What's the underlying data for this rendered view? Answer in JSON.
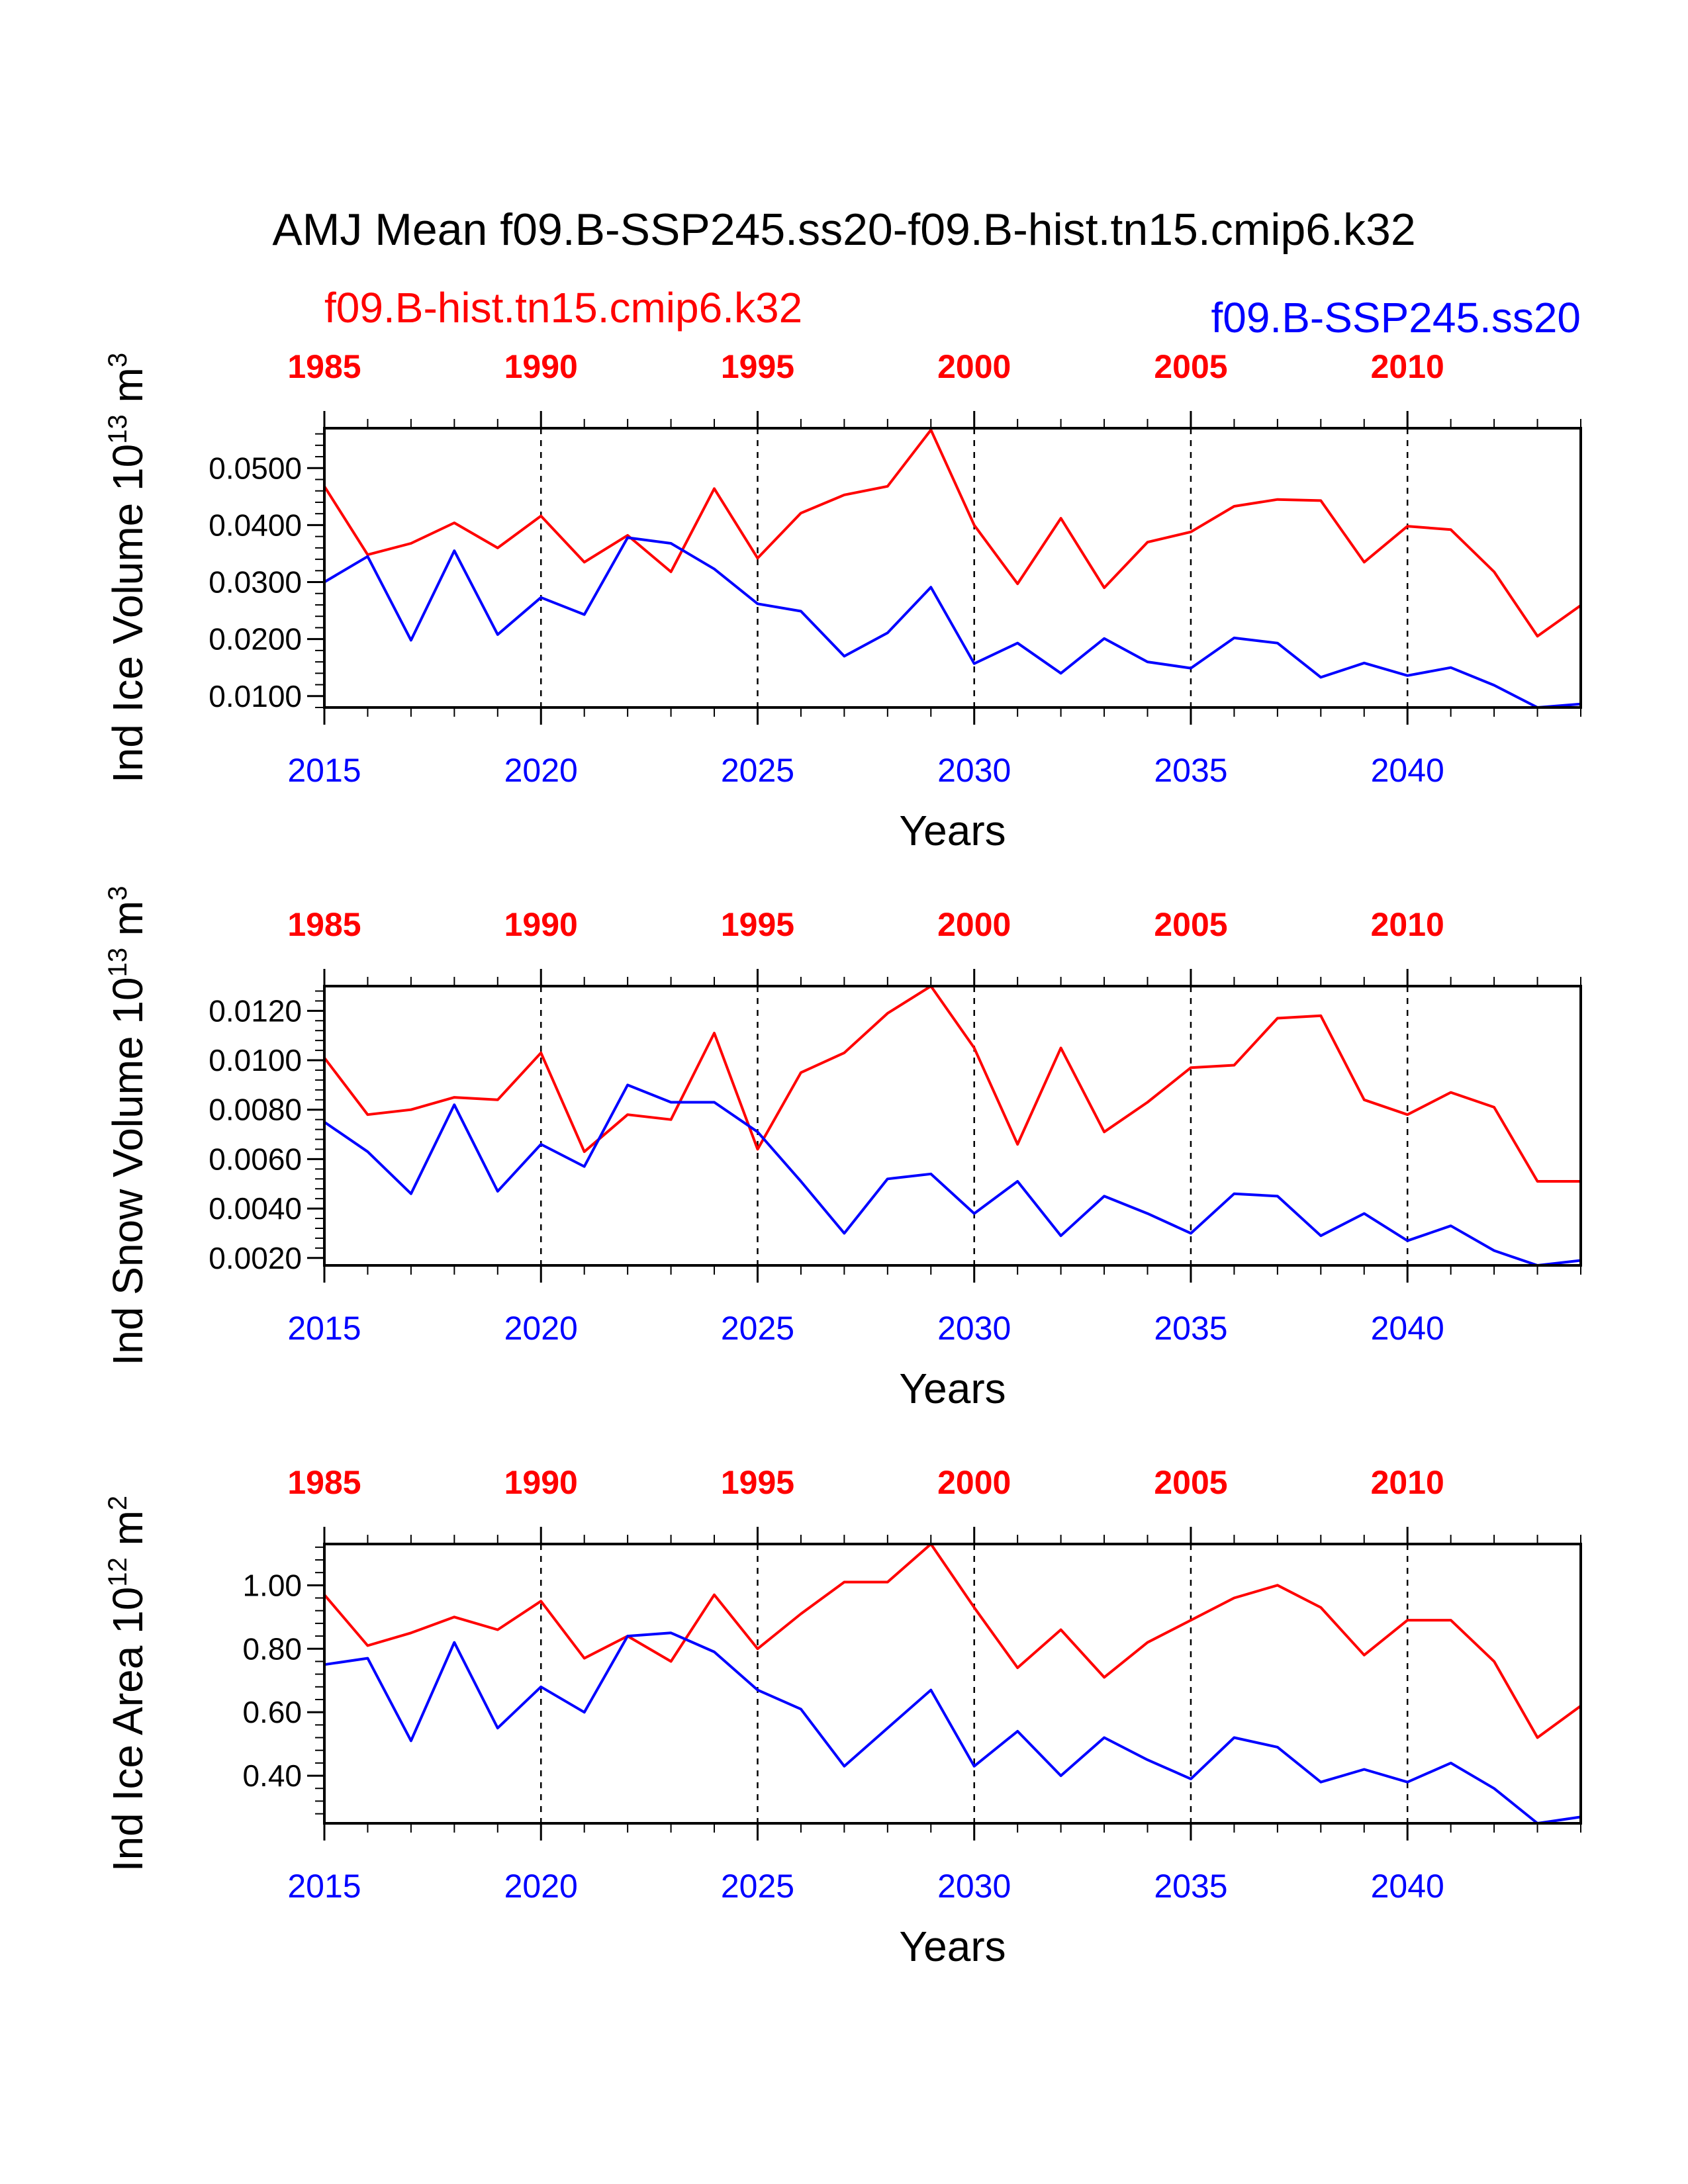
{
  "figure": {
    "title": "AMJ Mean f09.B-SSP245.ss20-f09.B-hist.tn15.cmip6.k32",
    "legend_left": "f09.B-hist.tn15.cmip6.k32",
    "legend_right": "f09.B-SSP245.ss20",
    "colors": {
      "historical": "#ff0000",
      "ssp": "#0000ff",
      "axis": "#000000"
    }
  },
  "chart_data": [
    {
      "type": "line",
      "title": "",
      "xlabel": "Years",
      "ylabel": {
        "main": "Ind Ice Volume 10",
        "sup": "13",
        "unit": " m",
        "unit_sup": "3"
      },
      "x": [
        2015,
        2016,
        2017,
        2018,
        2019,
        2020,
        2021,
        2022,
        2023,
        2024,
        2025,
        2026,
        2027,
        2028,
        2029,
        2030,
        2031,
        2032,
        2033,
        2034,
        2035,
        2036,
        2037,
        2038,
        2039,
        2040,
        2041,
        2042,
        2043,
        2044
      ],
      "xlim": [
        2015,
        2044
      ],
      "bottom_ticks": [
        "2015",
        "2020",
        "2025",
        "2030",
        "2035",
        "2040"
      ],
      "top_ticks": [
        "1985",
        "1990",
        "1995",
        "2000",
        "2005",
        "2010"
      ],
      "ylim": [
        0.008,
        0.057
      ],
      "yticks": [
        0.01,
        0.02,
        0.03,
        0.04,
        0.05
      ],
      "ytick_labels": [
        "0.0100",
        "0.0200",
        "0.0300",
        "0.0400",
        "0.0500"
      ],
      "yminor_step": 0.002,
      "grid": "dashed vertical at major x ticks",
      "series": [
        {
          "role": "historical",
          "color": "#ff0000",
          "values": [
            0.0468,
            0.0348,
            0.0368,
            0.0404,
            0.036,
            0.0416,
            0.0335,
            0.0382,
            0.0318,
            0.0464,
            0.0342,
            0.0421,
            0.0453,
            0.0468,
            0.0567,
            0.04,
            0.0297,
            0.0412,
            0.029,
            0.037,
            0.0388,
            0.0433,
            0.0445,
            0.0443,
            0.0335,
            0.0398,
            0.0392,
            0.0318,
            0.0205,
            0.0259
          ]
        },
        {
          "role": "ssp",
          "color": "#0000ff",
          "values": [
            0.03,
            0.0345,
            0.0198,
            0.0355,
            0.0208,
            0.0273,
            0.0243,
            0.0378,
            0.0368,
            0.0323,
            0.0262,
            0.0249,
            0.017,
            0.0211,
            0.0291,
            0.0157,
            0.0193,
            0.014,
            0.0201,
            0.016,
            0.0149,
            0.0202,
            0.0193,
            0.0133,
            0.0158,
            0.0136,
            0.015,
            0.0119,
            0.0078,
            0.0086
          ]
        }
      ]
    },
    {
      "type": "line",
      "title": "",
      "xlabel": "Years",
      "ylabel": {
        "main": "Ind Snow Volume 10",
        "sup": "13",
        "unit": " m",
        "unit_sup": "3"
      },
      "x": [
        2015,
        2016,
        2017,
        2018,
        2019,
        2020,
        2021,
        2022,
        2023,
        2024,
        2025,
        2026,
        2027,
        2028,
        2029,
        2030,
        2031,
        2032,
        2033,
        2034,
        2035,
        2036,
        2037,
        2038,
        2039,
        2040,
        2041,
        2042,
        2043,
        2044
      ],
      "xlim": [
        2015,
        2044
      ],
      "bottom_ticks": [
        "2015",
        "2020",
        "2025",
        "2030",
        "2035",
        "2040"
      ],
      "top_ticks": [
        "1985",
        "1990",
        "1995",
        "2000",
        "2005",
        "2010"
      ],
      "ylim": [
        0.0017,
        0.013
      ],
      "yticks": [
        0.002,
        0.004,
        0.006,
        0.008,
        0.01,
        0.012
      ],
      "ytick_labels": [
        "0.0020",
        "0.0040",
        "0.0060",
        "0.0080",
        "0.0100",
        "0.0120"
      ],
      "yminor_step": 0.0004,
      "grid": "dashed vertical at major x ticks",
      "series": [
        {
          "role": "historical",
          "color": "#ff0000",
          "values": [
            0.0101,
            0.0078,
            0.008,
            0.0085,
            0.0084,
            0.0103,
            0.0063,
            0.0078,
            0.0076,
            0.0111,
            0.0064,
            0.0095,
            0.0103,
            0.0119,
            0.0131,
            0.0105,
            0.0066,
            0.0105,
            0.0071,
            0.0083,
            0.0097,
            0.0098,
            0.0117,
            0.0118,
            0.0084,
            0.0078,
            0.0087,
            0.0081,
            0.0051,
            0.0051
          ]
        },
        {
          "role": "ssp",
          "color": "#0000ff",
          "values": [
            0.0075,
            0.0063,
            0.0046,
            0.0082,
            0.0047,
            0.0066,
            0.0057,
            0.009,
            0.0083,
            0.0083,
            0.0071,
            0.0051,
            0.003,
            0.0052,
            0.0054,
            0.0038,
            0.0051,
            0.0029,
            0.0045,
            0.0038,
            0.003,
            0.0046,
            0.0045,
            0.0029,
            0.0038,
            0.0027,
            0.0033,
            0.0023,
            0.0016,
            0.0019
          ]
        }
      ]
    },
    {
      "type": "line",
      "title": "",
      "xlabel": "Years",
      "ylabel": {
        "main": "Ind Ice Area 10",
        "sup": "12",
        "unit": " m",
        "unit_sup": "2"
      },
      "x": [
        2015,
        2016,
        2017,
        2018,
        2019,
        2020,
        2021,
        2022,
        2023,
        2024,
        2025,
        2026,
        2027,
        2028,
        2029,
        2030,
        2031,
        2032,
        2033,
        2034,
        2035,
        2036,
        2037,
        2038,
        2039,
        2040,
        2041,
        2042,
        2043,
        2044
      ],
      "xlim": [
        2015,
        2044
      ],
      "bottom_ticks": [
        "2015",
        "2020",
        "2025",
        "2030",
        "2035",
        "2040"
      ],
      "top_ticks": [
        "1985",
        "1990",
        "1995",
        "2000",
        "2005",
        "2010"
      ],
      "ylim": [
        0.25,
        1.13
      ],
      "yticks": [
        0.4,
        0.6,
        0.8,
        1.0
      ],
      "ytick_labels": [
        "0.40",
        "0.60",
        "0.80",
        "1.00"
      ],
      "yminor_step": 0.04,
      "grid": "dashed vertical at major x ticks",
      "series": [
        {
          "role": "historical",
          "color": "#ff0000",
          "values": [
            0.97,
            0.81,
            0.85,
            0.9,
            0.86,
            0.95,
            0.77,
            0.84,
            0.76,
            0.97,
            0.8,
            0.91,
            1.01,
            1.01,
            1.13,
            0.93,
            0.74,
            0.86,
            0.71,
            0.82,
            0.89,
            0.96,
            1.0,
            0.93,
            0.78,
            0.89,
            0.89,
            0.76,
            0.52,
            0.62
          ]
        },
        {
          "role": "ssp",
          "color": "#0000ff",
          "values": [
            0.75,
            0.77,
            0.51,
            0.82,
            0.55,
            0.68,
            0.6,
            0.84,
            0.85,
            0.79,
            0.67,
            0.61,
            0.43,
            0.55,
            0.67,
            0.43,
            0.54,
            0.4,
            0.52,
            0.45,
            0.39,
            0.52,
            0.49,
            0.38,
            0.42,
            0.38,
            0.44,
            0.36,
            0.25,
            0.27
          ]
        }
      ]
    }
  ]
}
